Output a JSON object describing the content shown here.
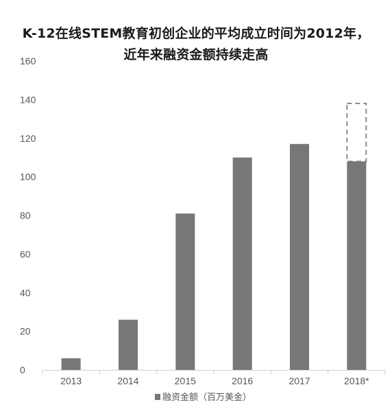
{
  "chart_data": {
    "type": "bar",
    "title_lines": [
      "K-12在线STEM教育初创企业的平均成立时间为2012年，",
      "近年来融资金额持续走高"
    ],
    "categories": [
      "2013",
      "2014",
      "2015",
      "2016",
      "2017",
      "2018*"
    ],
    "series": [
      {
        "name": "融资金额（百万美金）",
        "values": [
          6,
          26,
          81,
          110,
          117,
          108
        ]
      }
    ],
    "projected": {
      "category": "2018*",
      "value": 138,
      "style": "dashed-outline"
    },
    "ylim": [
      0,
      160
    ],
    "yticks": [
      0,
      20,
      40,
      60,
      80,
      100,
      120,
      140,
      160
    ],
    "xlabel": "",
    "ylabel": "",
    "grid": false,
    "legend": "bottom-center",
    "colors": {
      "bar": "#777777",
      "axis": "#cfcfcf",
      "dashed": "#8a8a8a",
      "text": "#555555",
      "title": "#1a1a1a"
    }
  }
}
